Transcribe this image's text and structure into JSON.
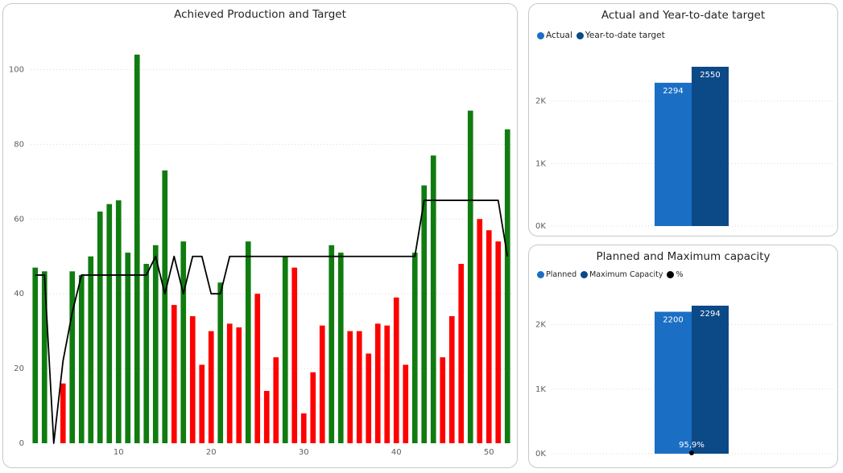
{
  "chart_data": [
    {
      "type": "bar+line",
      "title": "Achieved Production and Target",
      "xlabel": "",
      "ylabel": "",
      "xlim": [
        0.5,
        52.5
      ],
      "ylim": [
        0,
        110
      ],
      "x_ticks": [
        10,
        20,
        30,
        40,
        50
      ],
      "y_ticks": [
        0,
        20,
        40,
        60,
        80,
        100
      ],
      "grid": true,
      "legend": "none",
      "colors": {
        "met_target": "#107c10",
        "below_target": "#ff0000",
        "target_line": "#000000"
      },
      "x": [
        1,
        2,
        3,
        4,
        5,
        6,
        7,
        8,
        9,
        10,
        11,
        12,
        13,
        14,
        15,
        16,
        17,
        18,
        19,
        20,
        21,
        22,
        23,
        24,
        25,
        26,
        27,
        28,
        29,
        30,
        31,
        32,
        33,
        34,
        35,
        36,
        37,
        38,
        39,
        40,
        41,
        42,
        43,
        44,
        45,
        46,
        47,
        48,
        49,
        50,
        51,
        52
      ],
      "series": [
        {
          "type": "bar",
          "values": [
            47,
            46,
            0,
            16,
            46,
            45,
            50,
            62,
            64,
            65,
            51,
            104,
            48,
            53,
            73,
            37,
            54,
            34,
            21,
            30,
            43,
            32,
            31,
            54,
            40,
            14,
            23,
            50,
            47,
            8,
            19,
            31.5,
            53,
            51,
            30,
            30,
            24,
            32,
            31.5,
            39,
            21,
            51,
            69,
            77,
            23,
            34,
            48,
            89,
            60,
            57,
            54,
            84
          ],
          "colors": [
            "g",
            "g",
            "g",
            "r",
            "g",
            "g",
            "g",
            "g",
            "g",
            "g",
            "g",
            "g",
            "g",
            "g",
            "g",
            "r",
            "g",
            "r",
            "r",
            "r",
            "g",
            "r",
            "r",
            "g",
            "r",
            "r",
            "r",
            "g",
            "r",
            "r",
            "r",
            "r",
            "g",
            "g",
            "r",
            "r",
            "r",
            "r",
            "r",
            "r",
            "r",
            "g",
            "g",
            "g",
            "r",
            "r",
            "r",
            "g",
            "r",
            "r",
            "r",
            "g"
          ]
        },
        {
          "type": "line",
          "values": [
            45,
            45,
            0,
            22,
            35,
            45,
            45,
            45,
            45,
            45,
            45,
            45,
            45,
            50,
            40,
            50,
            40,
            50,
            50,
            40,
            40,
            50,
            50,
            50,
            50,
            50,
            50,
            50,
            50,
            50,
            50,
            50,
            50,
            50,
            50,
            50,
            50,
            50,
            50,
            50,
            50,
            50,
            65,
            65,
            65,
            65,
            65,
            65,
            65,
            65,
            65,
            50
          ]
        }
      ]
    },
    {
      "type": "bar",
      "title": "Actual and Year-to-date target",
      "legend": "top-left",
      "categories": [
        ""
      ],
      "series": [
        {
          "name": "Actual",
          "values": [
            2294
          ],
          "color": "#1a6fc4"
        },
        {
          "name": "Year-to-date target",
          "values": [
            2550
          ],
          "color": "#0b4987"
        }
      ],
      "ylim": [
        0,
        2550
      ],
      "y_ticks": [
        0,
        1000,
        2000
      ],
      "y_tick_labels": [
        "0K",
        "1K",
        "2K"
      ],
      "grid": true
    },
    {
      "type": "bar",
      "title": "Planned and Maximum capacity",
      "legend": "top-left",
      "categories": [
        ""
      ],
      "series": [
        {
          "name": "Planned",
          "values": [
            2200
          ],
          "color": "#1a6fc4"
        },
        {
          "name": "Maximum Capacity",
          "values": [
            2294
          ],
          "color": "#0b4987"
        },
        {
          "name": "%",
          "values": [
            0.959
          ],
          "value_labels": [
            "95,9%"
          ],
          "color": "#000000"
        }
      ],
      "ylim": [
        0,
        2294
      ],
      "y_ticks": [
        0,
        1000,
        2000
      ],
      "y_tick_labels": [
        "0K",
        "1K",
        "2K"
      ],
      "grid": true
    }
  ]
}
